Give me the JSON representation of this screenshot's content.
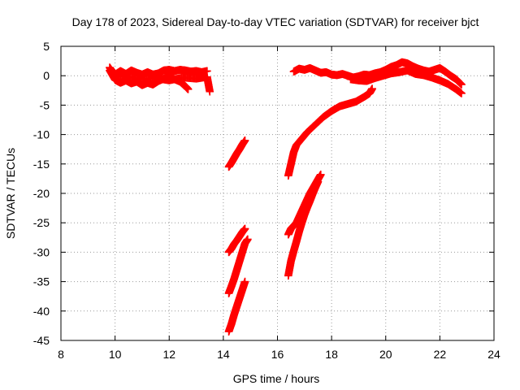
{
  "chart_data": {
    "type": "scatter",
    "title": "Day 178 of 2023, Sidereal Day-to-day VTEC variation (SDTVAR) for receiver bjct",
    "xlabel": "GPS time / hours",
    "ylabel": "SDTVAR / TECUs",
    "xlim": [
      8,
      24
    ],
    "ylim": [
      -45,
      5
    ],
    "xticks": [
      8,
      10,
      12,
      14,
      16,
      18,
      20,
      22,
      24
    ],
    "yticks": [
      5,
      0,
      -5,
      -10,
      -15,
      -20,
      -25,
      -30,
      -35,
      -40,
      -45
    ],
    "xtick_labels": [
      "8",
      "10",
      "12",
      "14",
      "16",
      "18",
      "20",
      "22",
      "24"
    ],
    "ytick_labels": [
      "5",
      "0",
      "-5",
      "-10",
      "-15",
      "-20",
      "-25",
      "-30",
      "-35",
      "-40",
      "-45"
    ],
    "grid": true,
    "legend": "none",
    "marker": "plus",
    "marker_color": "#ff0000",
    "series": [
      {
        "points": [
          [
            9.8,
            1.4
          ],
          [
            9.9,
            0.7
          ],
          [
            10.0,
            0.2
          ],
          [
            10.2,
            0.8
          ],
          [
            10.4,
            0.3
          ],
          [
            10.6,
            0.9
          ],
          [
            10.8,
            0.5
          ],
          [
            11.0,
            0.2
          ],
          [
            11.2,
            0.6
          ],
          [
            11.4,
            0.2
          ],
          [
            11.6,
            0.4
          ],
          [
            11.8,
            0.9
          ],
          [
            12.0,
            1.0
          ],
          [
            12.2,
            0.8
          ],
          [
            12.4,
            1.0
          ],
          [
            12.6,
            0.9
          ],
          [
            12.8,
            0.7
          ],
          [
            13.0,
            0.8
          ],
          [
            13.2,
            0.6
          ],
          [
            13.4,
            0.8
          ]
        ]
      },
      {
        "points": [
          [
            9.8,
            0.9
          ],
          [
            10.0,
            -0.7
          ],
          [
            10.2,
            -1.2
          ],
          [
            10.4,
            -0.8
          ],
          [
            10.6,
            -1.3
          ],
          [
            10.8,
            -1.0
          ],
          [
            11.0,
            -1.6
          ],
          [
            11.2,
            -1.2
          ],
          [
            11.4,
            -1.5
          ],
          [
            11.6,
            -0.9
          ],
          [
            11.8,
            -0.5
          ],
          [
            12.0,
            -0.2
          ],
          [
            12.2,
            -0.6
          ],
          [
            12.4,
            -1.0
          ],
          [
            12.6,
            -1.8
          ],
          [
            12.7,
            -2.3
          ]
        ]
      },
      {
        "points": [
          [
            10.0,
            0.0
          ],
          [
            10.5,
            -0.2
          ],
          [
            11.0,
            -0.6
          ],
          [
            11.5,
            -0.4
          ],
          [
            12.0,
            -0.8
          ],
          [
            12.5,
            -0.3
          ],
          [
            13.0,
            -0.5
          ],
          [
            13.4,
            -0.2
          ],
          [
            13.5,
            -2.7
          ]
        ]
      },
      {
        "points": [
          [
            14.2,
            -15.5
          ],
          [
            14.3,
            -14.8
          ],
          [
            14.4,
            -14.0
          ],
          [
            14.5,
            -13.2
          ],
          [
            14.6,
            -12.5
          ],
          [
            14.7,
            -11.7
          ],
          [
            14.8,
            -11.0
          ]
        ]
      },
      {
        "points": [
          [
            14.2,
            -30.0
          ],
          [
            14.3,
            -29.4
          ],
          [
            14.4,
            -28.6
          ],
          [
            14.5,
            -28.0
          ],
          [
            14.6,
            -27.3
          ],
          [
            14.7,
            -26.6
          ],
          [
            14.8,
            -26.0
          ]
        ]
      },
      {
        "points": [
          [
            14.2,
            -37.0
          ],
          [
            14.3,
            -35.8
          ],
          [
            14.4,
            -34.5
          ],
          [
            14.5,
            -33.0
          ],
          [
            14.6,
            -31.5
          ],
          [
            14.7,
            -30.0
          ],
          [
            14.8,
            -28.5
          ],
          [
            14.9,
            -27.8
          ]
        ]
      },
      {
        "points": [
          [
            14.2,
            -43.5
          ],
          [
            14.3,
            -42.2
          ],
          [
            14.4,
            -40.6
          ],
          [
            14.5,
            -39.2
          ],
          [
            14.6,
            -37.8
          ],
          [
            14.7,
            -36.4
          ],
          [
            14.8,
            -35.0
          ]
        ]
      },
      {
        "points": [
          [
            16.4,
            -17.0
          ],
          [
            16.5,
            -15.0
          ],
          [
            16.6,
            -13.0
          ],
          [
            16.7,
            -11.8
          ],
          [
            16.9,
            -10.7
          ],
          [
            17.1,
            -9.6
          ],
          [
            17.4,
            -8.3
          ],
          [
            17.7,
            -7.0
          ],
          [
            18.0,
            -6.0
          ],
          [
            18.3,
            -5.2
          ],
          [
            18.6,
            -4.8
          ],
          [
            18.9,
            -4.4
          ],
          [
            19.2,
            -3.6
          ],
          [
            19.4,
            -3.0
          ],
          [
            19.5,
            -2.2
          ]
        ]
      },
      {
        "points": [
          [
            16.4,
            -27.0
          ],
          [
            16.5,
            -26.0
          ],
          [
            16.6,
            -25.5
          ],
          [
            16.7,
            -25.0
          ],
          [
            16.8,
            -24.0
          ],
          [
            16.9,
            -23.0
          ],
          [
            17.0,
            -22.0
          ],
          [
            17.1,
            -21.0
          ],
          [
            17.2,
            -20.0
          ],
          [
            17.3,
            -19.2
          ],
          [
            17.4,
            -18.4
          ],
          [
            17.5,
            -17.6
          ],
          [
            17.6,
            -16.8
          ]
        ]
      },
      {
        "points": [
          [
            16.4,
            -34.0
          ],
          [
            16.5,
            -31.5
          ],
          [
            16.6,
            -29.8
          ],
          [
            16.7,
            -28.2
          ],
          [
            16.8,
            -26.5
          ],
          [
            16.9,
            -25.0
          ],
          [
            17.0,
            -23.6
          ],
          [
            17.1,
            -22.4
          ],
          [
            17.2,
            -21.3
          ],
          [
            17.3,
            -20.1
          ],
          [
            17.4,
            -19.0
          ],
          [
            17.5,
            -18.0
          ]
        ]
      },
      {
        "points": [
          [
            16.6,
            0.7
          ],
          [
            16.8,
            1.2
          ],
          [
            17.0,
            1.0
          ],
          [
            17.2,
            1.3
          ],
          [
            17.4,
            0.9
          ],
          [
            17.6,
            0.5
          ],
          [
            17.8,
            0.6
          ],
          [
            18.0,
            0.2
          ],
          [
            18.2,
            0.1
          ],
          [
            18.4,
            0.3
          ],
          [
            18.6,
            0.0
          ],
          [
            18.8,
            -0.3
          ],
          [
            19.0,
            -0.1
          ],
          [
            19.2,
            0.2
          ],
          [
            19.4,
            0.1
          ],
          [
            19.6,
            0.4
          ],
          [
            19.8,
            0.6
          ],
          [
            20.0,
            1.0
          ],
          [
            20.2,
            1.5
          ],
          [
            20.4,
            1.8
          ],
          [
            20.6,
            2.3
          ],
          [
            20.8,
            2.1
          ],
          [
            21.0,
            1.6
          ],
          [
            21.2,
            1.2
          ],
          [
            21.4,
            0.9
          ],
          [
            21.6,
            0.7
          ],
          [
            21.8,
            1.0
          ],
          [
            22.0,
            1.3
          ],
          [
            22.2,
            0.7
          ],
          [
            22.4,
            0.0
          ],
          [
            22.6,
            -0.6
          ],
          [
            22.8,
            -1.5
          ]
        ]
      },
      {
        "points": [
          [
            18.7,
            -0.6
          ],
          [
            19.0,
            -0.8
          ],
          [
            19.3,
            -0.9
          ],
          [
            19.6,
            -0.4
          ],
          [
            19.9,
            0.0
          ],
          [
            20.2,
            0.4
          ],
          [
            20.5,
            0.6
          ],
          [
            20.8,
            0.9
          ],
          [
            21.1,
            0.3
          ],
          [
            21.4,
            0.1
          ],
          [
            21.7,
            -0.3
          ],
          [
            22.0,
            -0.8
          ],
          [
            22.3,
            -1.4
          ],
          [
            22.6,
            -2.3
          ],
          [
            22.8,
            -3.0
          ]
        ]
      }
    ]
  }
}
